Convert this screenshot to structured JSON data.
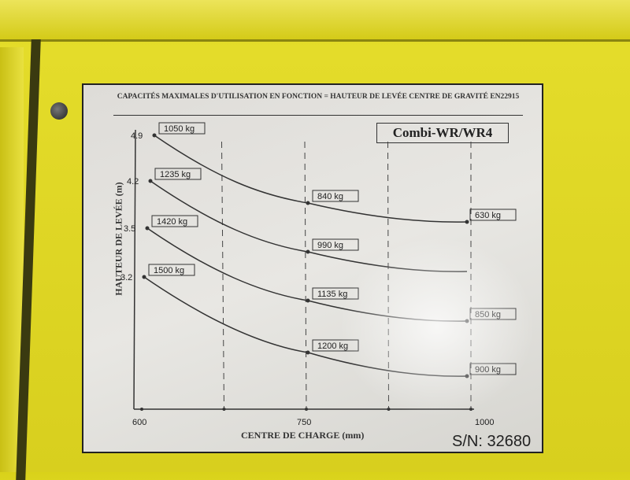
{
  "plate": {
    "header": "CAPACITÉS MAXIMALES D'UTILISATION EN FONCTION = HAUTEUR DE LEVÉE CENTRE DE GRAVITÉ EN22915",
    "model": "Combi-WR/WR4",
    "serial": "S/N: 32680"
  },
  "chart_data": {
    "type": "line",
    "title": "CAPACITÉS MAXIMALES D'UTILISATION EN FONCTION = HAUTEUR DE LEVÉE CENTRE DE GRAVITÉ EN22915",
    "xlabel": "CENTRE DE CHARGE (mm)",
    "ylabel": "HAUTEUR DE LEVÉE (m)",
    "x_tick_labels": [
      "600",
      "750",
      "1000"
    ],
    "xlim": [
      600,
      1000
    ],
    "grid": "vertical dashed",
    "series": [
      {
        "name": "4.9",
        "x": [
          600,
          800,
          1000
        ],
        "labels": [
          "1050 kg",
          "840 kg",
          "630 kg"
        ],
        "values": [
          1050,
          840,
          630
        ]
      },
      {
        "name": "4.2",
        "x": [
          600,
          800,
          1000
        ],
        "labels": [
          "1235 kg",
          "990 kg",
          ""
        ],
        "values": [
          1235,
          990,
          null
        ]
      },
      {
        "name": "3.5",
        "x": [
          600,
          800,
          1000
        ],
        "labels": [
          "1420 kg",
          "1135 kg",
          "850 kg"
        ],
        "values": [
          1420,
          1135,
          850
        ]
      },
      {
        "name": "3.2",
        "x": [
          600,
          800,
          1000
        ],
        "labels": [
          "1500 kg",
          "1200 kg",
          "900 kg"
        ],
        "values": [
          1500,
          1200,
          900
        ]
      }
    ]
  }
}
